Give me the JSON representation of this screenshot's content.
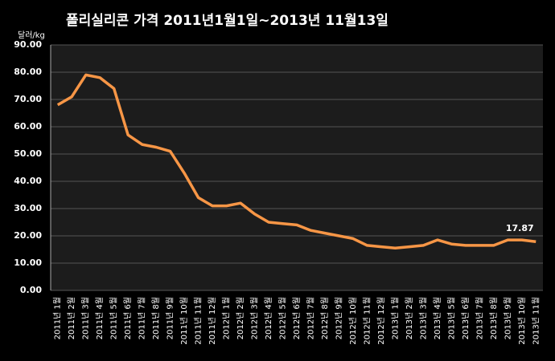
{
  "chart_data": {
    "type": "line",
    "title": "폴리실리콘 가격    2011년1월1일~2013년 11월13일",
    "y_label": "달러/kg",
    "categories": [
      "2011년 1월",
      "2011년 2월",
      "2011년 3월",
      "2011년 4월",
      "2011년 5월",
      "2011년 6월",
      "2011년 7월",
      "2011년 8월",
      "2011년 9월",
      "2011년 10월",
      "2011년 11월",
      "2011년 12월",
      "2012년 1월",
      "2012년 2월",
      "2012년 3월",
      "2012년 4월",
      "2012년 5월",
      "2012년 6월",
      "2012년 7월",
      "2012년 8월",
      "2012년 9월",
      "2012년 10월",
      "2012년 11월",
      "2012년 12월",
      "2013년 1월",
      "2013년 2월",
      "2013년 3월",
      "2013년 4월",
      "2013년 5월",
      "2013년 6월",
      "2013년 7월",
      "2013년 8월",
      "2013년 9월",
      "2013년 10월",
      "2013년 11월"
    ],
    "series": [
      {
        "name": "폴리실리콘",
        "color": "#f79646",
        "values": [
          68,
          71,
          79,
          78,
          74,
          57,
          53.5,
          52.5,
          51,
          43,
          34,
          31,
          31,
          32,
          28,
          25,
          24.5,
          24,
          22,
          21,
          20,
          19,
          16.5,
          16,
          15.5,
          16,
          16.5,
          18.5,
          17,
          16.5,
          16.5,
          16.5,
          18.5,
          18.5,
          17.87
        ]
      }
    ],
    "ylim": [
      0,
      90
    ],
    "yticks": [
      {
        "value": 0,
        "label": "0.00"
      },
      {
        "value": 10,
        "label": "10.00"
      },
      {
        "value": 20,
        "label": "20.00"
      },
      {
        "value": 30,
        "label": "30.00"
      },
      {
        "value": 40,
        "label": "40.00"
      },
      {
        "value": 50,
        "label": "50.00"
      },
      {
        "value": 60,
        "label": "60.00"
      },
      {
        "value": 70,
        "label": "70.00"
      },
      {
        "value": 80,
        "label": "80.00"
      },
      {
        "value": 90,
        "label": "90.00"
      }
    ],
    "grid": true
  }
}
